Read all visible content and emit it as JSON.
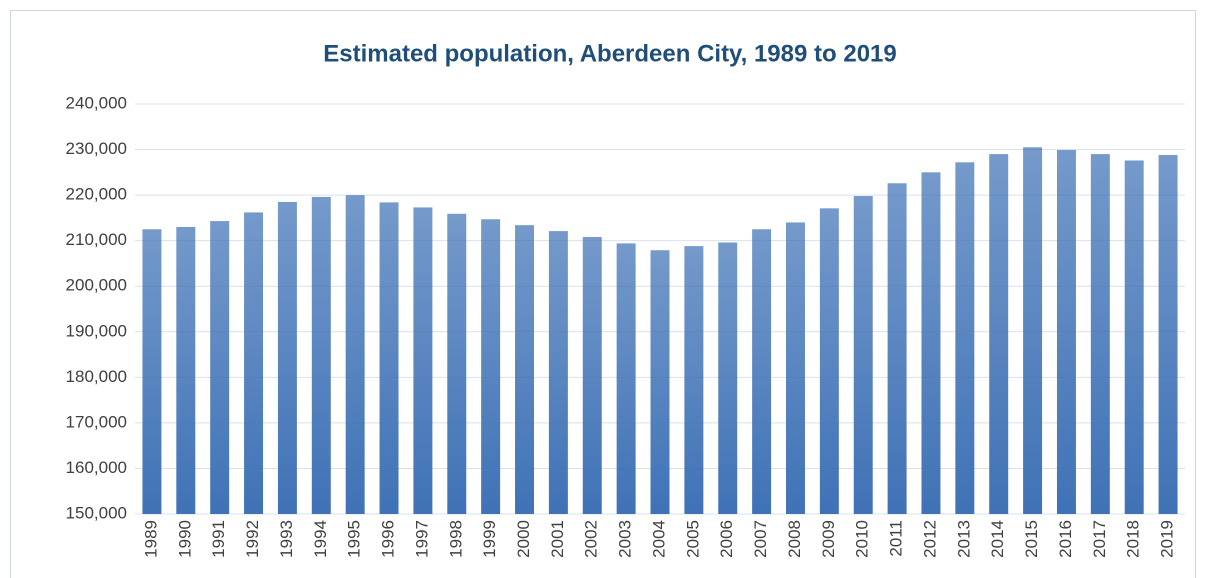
{
  "chart_data": {
    "type": "bar",
    "title": "Estimated population, Aberdeen City, 1989 to 2019",
    "categories": [
      "1989",
      "1990",
      "1991",
      "1992",
      "1993",
      "1994",
      "1995",
      "1996",
      "1997",
      "1998",
      "1999",
      "2000",
      "2001",
      "2002",
      "2003",
      "2004",
      "2005",
      "2006",
      "2007",
      "2008",
      "2009",
      "2010",
      "2011",
      "2012",
      "2013",
      "2014",
      "2015",
      "2016",
      "2017",
      "2018",
      "2019"
    ],
    "values": [
      212500,
      213000,
      214300,
      216200,
      218500,
      219600,
      220000,
      218400,
      217300,
      215900,
      214700,
      213400,
      212100,
      210800,
      209400,
      207900,
      208800,
      209600,
      212500,
      214000,
      217100,
      219800,
      222600,
      225000,
      227200,
      229000,
      230500,
      229900,
      229000,
      227600,
      228800
    ],
    "color": "#3f72b6",
    "ylim": [
      150000,
      240000
    ],
    "yticks": [
      {
        "value": 150000,
        "label": "150,000"
      },
      {
        "value": 160000,
        "label": "160,000"
      },
      {
        "value": 170000,
        "label": "170,000"
      },
      {
        "value": 180000,
        "label": "180,000"
      },
      {
        "value": 190000,
        "label": "190,000"
      },
      {
        "value": 200000,
        "label": "200,000"
      },
      {
        "value": 210000,
        "label": "210,000"
      },
      {
        "value": 220000,
        "label": "220,000"
      },
      {
        "value": 230000,
        "label": "230,000"
      },
      {
        "value": 240000,
        "label": "240,000"
      }
    ],
    "grid": true
  }
}
